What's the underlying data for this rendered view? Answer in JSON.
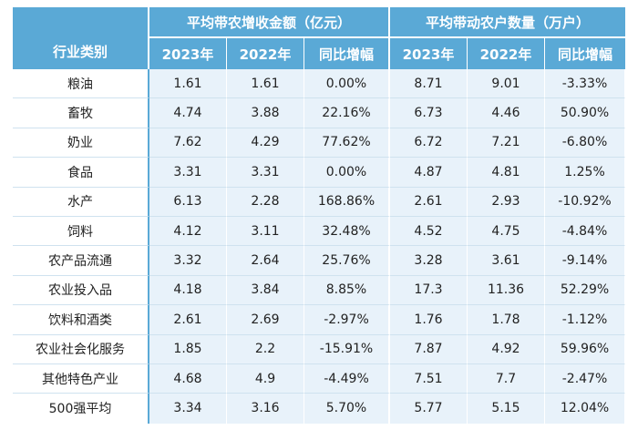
{
  "header": {
    "category_label": "行业类别",
    "group1_title": "平均带农增收金额（亿元）",
    "group2_title": "平均带动农户数量（万户）",
    "group1_cols": [
      "2023年",
      "2022年",
      "同比增幅"
    ],
    "group2_cols": [
      "2023年",
      "2022年",
      "同比增幅"
    ]
  },
  "rows": [
    {
      "category": "粮油",
      "a2023": "1.61",
      "a2022": "1.61",
      "aYoY": "0.00%",
      "b2023": "8.71",
      "b2022": "9.01",
      "bYoY": "-3.33%"
    },
    {
      "category": "畜牧",
      "a2023": "4.74",
      "a2022": "3.88",
      "aYoY": "22.16%",
      "b2023": "6.73",
      "b2022": "4.46",
      "bYoY": "50.90%"
    },
    {
      "category": "奶业",
      "a2023": "7.62",
      "a2022": "4.29",
      "aYoY": "77.62%",
      "b2023": "6.72",
      "b2022": "7.21",
      "bYoY": "-6.80%"
    },
    {
      "category": "食品",
      "a2023": "3.31",
      "a2022": "3.31",
      "aYoY": "0.00%",
      "b2023": "4.87",
      "b2022": "4.81",
      "bYoY": "1.25%"
    },
    {
      "category": "水产",
      "a2023": "6.13",
      "a2022": "2.28",
      "aYoY": "168.86%",
      "b2023": "2.61",
      "b2022": "2.93",
      "bYoY": "-10.92%"
    },
    {
      "category": "饲料",
      "a2023": "4.12",
      "a2022": "3.11",
      "aYoY": "32.48%",
      "b2023": "4.52",
      "b2022": "4.75",
      "bYoY": "-4.84%"
    },
    {
      "category": "农产品流通",
      "a2023": "3.32",
      "a2022": "2.64",
      "aYoY": "25.76%",
      "b2023": "3.28",
      "b2022": "3.61",
      "bYoY": "-9.14%"
    },
    {
      "category": "农业投入品",
      "a2023": "4.18",
      "a2022": "3.84",
      "aYoY": "8.85%",
      "b2023": "17.3",
      "b2022": "11.36",
      "bYoY": "52.29%"
    },
    {
      "category": "饮料和酒类",
      "a2023": "2.61",
      "a2022": "2.69",
      "aYoY": "-2.97%",
      "b2023": "1.76",
      "b2022": "1.78",
      "bYoY": "-1.12%"
    },
    {
      "category": "农业社会化服务",
      "a2023": "1.85",
      "a2022": "2.2",
      "aYoY": "-15.91%",
      "b2023": "7.87",
      "b2022": "4.92",
      "bYoY": "59.96%"
    },
    {
      "category": "其他特色产业",
      "a2023": "4.68",
      "a2022": "4.9",
      "aYoY": "-4.49%",
      "b2023": "7.51",
      "b2022": "7.7",
      "bYoY": "-2.47%"
    },
    {
      "category": "500强平均",
      "a2023": "3.34",
      "a2022": "3.16",
      "aYoY": "5.70%",
      "b2023": "5.77",
      "b2022": "5.15",
      "bYoY": "12.04%"
    }
  ],
  "colors": {
    "header_bg": "#5aa9d6",
    "cell_bg": "#e8f2fa",
    "text": "#222222"
  }
}
